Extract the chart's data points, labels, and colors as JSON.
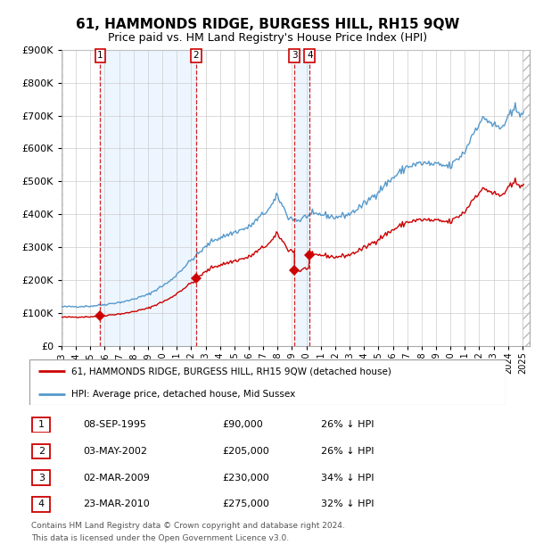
{
  "title": "61, HAMMONDS RIDGE, BURGESS HILL, RH15 9QW",
  "subtitle": "Price paid vs. HM Land Registry's House Price Index (HPI)",
  "legend_line1": "61, HAMMONDS RIDGE, BURGESS HILL, RH15 9QW (detached house)",
  "legend_line2": "HPI: Average price, detached house, Mid Sussex",
  "footer_line1": "Contains HM Land Registry data © Crown copyright and database right 2024.",
  "footer_line2": "This data is licensed under the Open Government Licence v3.0.",
  "transactions": [
    {
      "num": 1,
      "date": "08-SEP-1995",
      "date_x": 1995.69,
      "price": 90000,
      "pct": "26% ↓ HPI"
    },
    {
      "num": 2,
      "date": "03-MAY-2002",
      "date_x": 2002.34,
      "price": 205000,
      "pct": "26% ↓ HPI"
    },
    {
      "num": 3,
      "date": "02-MAR-2009",
      "date_x": 2009.17,
      "price": 230000,
      "pct": "34% ↓ HPI"
    },
    {
      "num": 4,
      "date": "23-MAR-2010",
      "date_x": 2010.23,
      "price": 275000,
      "pct": "32% ↓ HPI"
    }
  ],
  "hpi_color": "#5599cc",
  "hpi_fill_color": "#ddeeff",
  "price_color": "#cc0000",
  "marker_color": "#cc0000",
  "shade_color": "#ddeeff",
  "background_color": "#ffffff",
  "ylim": [
    0,
    900000
  ],
  "xlim_start": 1993.0,
  "xlim_end": 2025.5
}
